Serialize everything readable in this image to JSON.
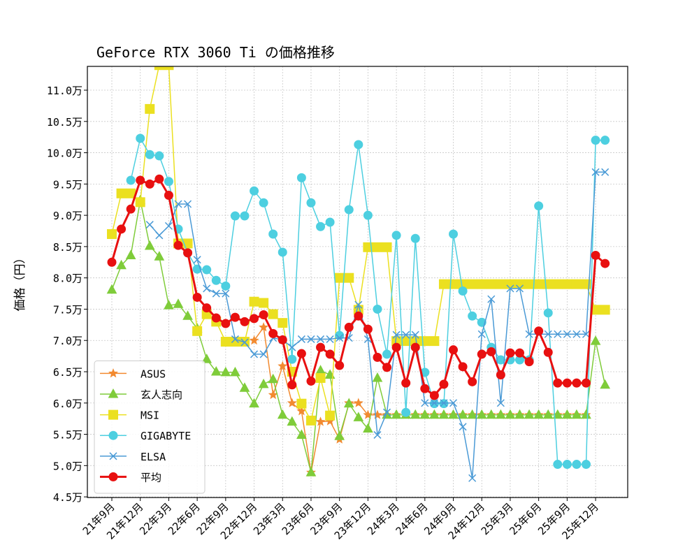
{
  "chart_data": {
    "type": "line",
    "title": "GeForce RTX 3060 Ti の価格推移",
    "y_label": "価格（円）",
    "categories": [
      "21年9月",
      null,
      null,
      "21年12月",
      null,
      null,
      "22年3月",
      null,
      null,
      "22年6月",
      null,
      null,
      "22年9月",
      null,
      null,
      "22年12月",
      null,
      null,
      "23年3月",
      null,
      null,
      "23年6月",
      null,
      null,
      "23年9月",
      null,
      null,
      "23年12月",
      null,
      null,
      "24年3月",
      null,
      null,
      "24年6月",
      null,
      null,
      "24年9月",
      null,
      null,
      "24年12月",
      null,
      null,
      "25年3月",
      null,
      null,
      "25年6月",
      null,
      null,
      "25年9月",
      null,
      null,
      "25年12月",
      null
    ],
    "ylim": [
      4.49,
      11.38
    ],
    "yticks": [
      {
        "value": 4.5,
        "label": "4.5万"
      },
      {
        "value": 5.0,
        "label": "5.0万"
      },
      {
        "value": 5.5,
        "label": "5.5万"
      },
      {
        "value": 6.0,
        "label": "6.0万"
      },
      {
        "value": 6.5,
        "label": "6.5万"
      },
      {
        "value": 7.0,
        "label": "7.0万"
      },
      {
        "value": 7.5,
        "label": "7.5万"
      },
      {
        "value": 8.0,
        "label": "8.0万"
      },
      {
        "value": 8.5,
        "label": "8.5万"
      },
      {
        "value": 9.0,
        "label": "9.0万"
      },
      {
        "value": 9.5,
        "label": "9.5万"
      },
      {
        "value": 10.0,
        "label": "10.0万"
      },
      {
        "value": 10.5,
        "label": "10.5万"
      },
      {
        "value": 11.0,
        "label": "11.0万"
      }
    ],
    "grid": true,
    "legend": "lower left",
    "series": [
      {
        "name": "ASUS",
        "color": "#f28a30",
        "marker": "star",
        "width": 1.5,
        "values": [
          null,
          null,
          null,
          null,
          null,
          null,
          null,
          null,
          null,
          null,
          null,
          null,
          null,
          null,
          null,
          7.0,
          7.21,
          6.13,
          6.59,
          6.0,
          5.87,
          4.89,
          5.7,
          5.71,
          5.42,
          6.0,
          6.0,
          5.81,
          5.81,
          5.81,
          5.81,
          5.81,
          5.81,
          5.81,
          5.81,
          5.81,
          5.81,
          5.81,
          5.81,
          5.81,
          5.81,
          5.81,
          5.81,
          5.81,
          5.81,
          5.81,
          5.81,
          5.81,
          5.81,
          5.81,
          5.81,
          null,
          null
        ]
      },
      {
        "name": "玄人志向",
        "color": "#7fcc3a",
        "marker": "triangle",
        "width": 1.5,
        "values": [
          7.81,
          8.2,
          8.36,
          9.24,
          8.51,
          8.34,
          7.56,
          7.58,
          7.39,
          7.19,
          6.7,
          6.5,
          6.49,
          6.49,
          6.24,
          5.99,
          6.3,
          6.38,
          5.81,
          5.7,
          5.49,
          4.89,
          6.52,
          6.45,
          5.47,
          5.99,
          5.77,
          5.59,
          6.4,
          5.81,
          5.81,
          5.81,
          5.81,
          5.81,
          5.81,
          5.81,
          5.81,
          5.81,
          5.81,
          5.81,
          5.81,
          5.81,
          5.81,
          5.81,
          5.81,
          5.81,
          5.81,
          5.81,
          5.81,
          5.81,
          5.81,
          6.99,
          6.29
        ]
      },
      {
        "name": "MSI",
        "color": "#ebe020",
        "marker": "square",
        "width": 1.5,
        "values": [
          8.7,
          9.35,
          9.35,
          9.21,
          10.7,
          11.4,
          11.4,
          8.55,
          8.55,
          7.15,
          7.42,
          7.3,
          6.98,
          6.98,
          6.98,
          7.62,
          7.6,
          7.42,
          7.28,
          6.5,
          5.99,
          5.72,
          6.4,
          5.8,
          8.0,
          8.0,
          7.49,
          8.49,
          8.49,
          8.49,
          6.99,
          6.99,
          6.99,
          6.99,
          6.99,
          7.9,
          7.9,
          7.9,
          7.9,
          7.9,
          7.9,
          7.9,
          7.9,
          7.9,
          7.9,
          7.9,
          7.9,
          7.9,
          7.9,
          7.9,
          7.9,
          7.49,
          7.49
        ]
      },
      {
        "name": "GIGABYTE",
        "color": "#4dcfe0",
        "marker": "circle",
        "width": 1.5,
        "values": [
          null,
          null,
          9.56,
          10.23,
          9.97,
          9.95,
          9.54,
          8.78,
          8.4,
          8.14,
          8.13,
          7.96,
          7.87,
          8.99,
          8.99,
          9.39,
          9.2,
          8.7,
          8.41,
          6.7,
          9.6,
          9.2,
          8.82,
          8.89,
          7.08,
          9.09,
          10.13,
          9.0,
          7.5,
          6.78,
          8.68,
          5.85,
          8.63,
          6.49,
          5.99,
          5.99,
          8.7,
          7.79,
          7.39,
          7.29,
          6.89,
          6.69,
          6.69,
          6.69,
          6.69,
          9.15,
          7.44,
          5.02,
          5.02,
          5.02,
          5.02,
          10.2,
          10.2
        ]
      },
      {
        "name": "ELSA",
        "color": "#4a9ad6",
        "marker": "x",
        "width": 1.5,
        "values": [
          null,
          null,
          null,
          null,
          8.85,
          8.68,
          8.83,
          9.18,
          9.18,
          8.29,
          7.83,
          7.75,
          7.75,
          7.02,
          6.97,
          6.78,
          6.78,
          7.04,
          7.01,
          6.89,
          7.02,
          7.02,
          7.02,
          7.02,
          7.04,
          7.04,
          7.57,
          7.02,
          5.49,
          5.85,
          7.09,
          7.09,
          7.09,
          6.0,
          6.0,
          6.0,
          6.0,
          5.62,
          4.8,
          7.1,
          7.66,
          6.0,
          7.83,
          7.83,
          7.1,
          7.1,
          7.1,
          7.1,
          7.1,
          7.1,
          7.1,
          9.69,
          9.69
        ]
      },
      {
        "name": "平均",
        "color": "#e81010",
        "marker": "circle",
        "width": 3,
        "values": [
          8.25,
          8.78,
          9.1,
          9.56,
          9.5,
          9.58,
          9.32,
          8.52,
          8.4,
          7.69,
          7.52,
          7.36,
          7.27,
          7.37,
          7.3,
          7.35,
          7.41,
          7.11,
          7.01,
          6.29,
          6.79,
          6.35,
          6.89,
          6.78,
          6.6,
          7.21,
          7.39,
          7.18,
          6.73,
          6.57,
          6.89,
          6.32,
          6.89,
          6.23,
          6.12,
          6.3,
          6.85,
          6.58,
          6.34,
          6.78,
          6.82,
          6.45,
          6.8,
          6.8,
          6.66,
          7.15,
          6.81,
          6.32,
          6.32,
          6.32,
          6.32,
          8.36,
          8.23
        ]
      }
    ]
  }
}
